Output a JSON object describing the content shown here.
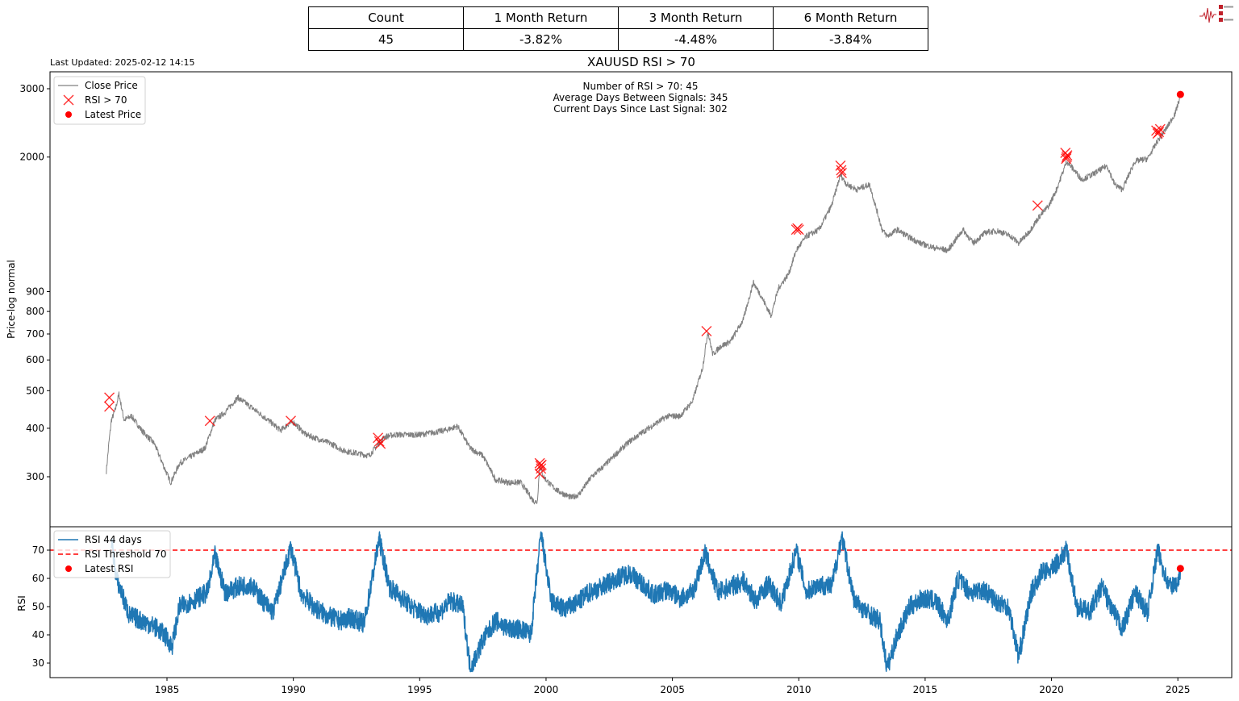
{
  "header": {
    "last_updated": "Last Updated: 2025-02-12 14:15",
    "title": "XAUUSD RSI > 70",
    "logo_alt": "Signal 2 Noise logo"
  },
  "stats_table": {
    "headers": [
      "Count",
      "1 Month Return",
      "3 Month Return",
      "6 Month Return"
    ],
    "values": [
      "45",
      "-3.82%",
      "-4.48%",
      "-3.84%"
    ]
  },
  "colors": {
    "price_line": "#808080",
    "signal_marker": "#ff0000",
    "rsi_line": "#1f77b4",
    "threshold_line": "#ff0000",
    "latest_dot": "#ff0000"
  },
  "chart_data": [
    {
      "type": "line",
      "title": "XAUUSD RSI > 70",
      "xlabel": "",
      "ylabel": "Price-log normal",
      "yscale": "log",
      "ylim": [
        240,
        3300
      ],
      "xlim": [
        1980.5,
        2027.3
      ],
      "y_ticks": [
        300,
        400,
        500,
        600,
        700,
        800,
        900,
        2000,
        3000
      ],
      "y_tick_labels": [
        "300",
        "400",
        "500",
        "600",
        "700",
        "800",
        "900",
        "2000",
        "3000"
      ],
      "x_ticks": [
        1985,
        1990,
        1995,
        2000,
        2005,
        2010,
        2015,
        2020,
        2025
      ],
      "x_tick_labels": [
        "1985",
        "1990",
        "1995",
        "2000",
        "2005",
        "2010",
        "2015",
        "2020",
        "2025"
      ],
      "grid": false,
      "legend": {
        "position": "upper left",
        "entries": [
          "Close Price",
          "RSI > 70",
          "Latest Price"
        ]
      },
      "annotations": [
        "Number of RSI > 70: 45",
        "Average Days Between Signals: 345",
        "Current Days Since Last Signal: 302"
      ],
      "series": [
        {
          "name": "Close Price",
          "x": [
            1982.6,
            1982.7,
            1982.8,
            1982.95,
            1983.1,
            1983.3,
            1983.6,
            1984.0,
            1984.5,
            1985.0,
            1985.15,
            1985.5,
            1986.0,
            1986.5,
            1986.9,
            1987.3,
            1987.8,
            1988.0,
            1988.5,
            1989.0,
            1989.5,
            1989.8,
            1990.0,
            1990.5,
            1991.0,
            1991.5,
            1992.0,
            1992.5,
            1993.0,
            1993.3,
            1993.6,
            1994.0,
            1994.5,
            1995.0,
            1995.5,
            1996.0,
            1996.5,
            1997.0,
            1997.5,
            1998.0,
            1998.5,
            1999.0,
            1999.5,
            1999.65,
            1999.75,
            1999.9,
            2000.2,
            2000.5,
            2001.0,
            2001.3,
            2001.8,
            2002.3,
            2002.8,
            2003.3,
            2003.8,
            2004.3,
            2004.8,
            2005.3,
            2005.8,
            2006.2,
            2006.4,
            2006.6,
            2006.9,
            2007.3,
            2007.8,
            2008.2,
            2008.5,
            2008.9,
            2009.2,
            2009.6,
            2009.9,
            2010.3,
            2010.8,
            2011.3,
            2011.65,
            2011.9,
            2012.3,
            2012.8,
            2013.3,
            2013.5,
            2013.9,
            2014.3,
            2014.8,
            2015.3,
            2015.9,
            2016.5,
            2016.9,
            2017.4,
            2017.9,
            2018.4,
            2018.7,
            2019.1,
            2019.5,
            2019.9,
            2020.2,
            2020.6,
            2020.9,
            2021.2,
            2021.6,
            2022.2,
            2022.5,
            2022.8,
            2023.3,
            2023.8,
            2024.2,
            2024.6,
            2024.9,
            2025.1
          ],
          "values": [
            310,
            365,
            420,
            445,
            490,
            420,
            430,
            395,
            365,
            305,
            290,
            325,
            340,
            355,
            420,
            440,
            480,
            470,
            445,
            420,
            395,
            410,
            415,
            385,
            375,
            365,
            350,
            345,
            340,
            360,
            380,
            385,
            385,
            385,
            390,
            395,
            405,
            355,
            340,
            295,
            290,
            290,
            260,
            258,
            320,
            300,
            285,
            275,
            265,
            270,
            300,
            320,
            345,
            370,
            390,
            410,
            430,
            430,
            470,
            575,
            710,
            620,
            650,
            670,
            760,
            950,
            880,
            780,
            920,
            1000,
            1150,
            1250,
            1300,
            1500,
            1800,
            1700,
            1650,
            1700,
            1300,
            1250,
            1300,
            1250,
            1200,
            1170,
            1150,
            1300,
            1200,
            1280,
            1290,
            1250,
            1200,
            1280,
            1400,
            1500,
            1650,
            1950,
            1850,
            1750,
            1800,
            1900,
            1700,
            1650,
            1950,
            1980,
            2200,
            2400,
            2600,
            2870
          ]
        },
        {
          "name": "RSI > 70",
          "marker": "x",
          "x": [
            1982.72,
            1982.72,
            1986.7,
            1989.9,
            1993.35,
            1993.4,
            1993.45,
            1999.75,
            1999.78,
            1999.8,
            1999.82,
            1999.75,
            2006.35,
            2009.9,
            2009.95,
            2010.0,
            2011.65,
            2011.68,
            2011.7,
            2019.45,
            2020.55,
            2020.6,
            2020.62,
            2020.58,
            2024.15,
            2024.2,
            2024.25,
            2024.3
          ],
          "values": [
            480,
            455,
            418,
            418,
            378,
            370,
            365,
            325,
            320,
            315,
            322,
            305,
            712,
            1300,
            1310,
            1300,
            1900,
            1850,
            1820,
            1500,
            2050,
            2000,
            2020,
            1980,
            2340,
            2300,
            2320,
            2360
          ]
        },
        {
          "name": "Latest Price",
          "marker": "o",
          "x": [
            2025.1
          ],
          "values": [
            2900
          ]
        }
      ]
    },
    {
      "type": "line",
      "title": "",
      "xlabel": "",
      "ylabel": "RSI",
      "ylim": [
        25.5,
        78
      ],
      "xlim": [
        1980.5,
        2027.3
      ],
      "y_ticks": [
        30,
        40,
        50,
        60,
        70
      ],
      "y_tick_labels": [
        "30",
        "40",
        "50",
        "60",
        "70"
      ],
      "x_ticks": [
        1985,
        1990,
        1995,
        2000,
        2005,
        2010,
        2015,
        2020,
        2025
      ],
      "x_tick_labels": [
        "1985",
        "1990",
        "1995",
        "2000",
        "2005",
        "2010",
        "2015",
        "2020",
        "2025"
      ],
      "grid": false,
      "legend": {
        "position": "upper left",
        "entries": [
          "RSI 44 days",
          "RSI Threshold 70",
          "Latest RSI"
        ]
      },
      "series": [
        {
          "name": "RSI 44 days",
          "x": [
            1982.8,
            1983.0,
            1983.2,
            1983.5,
            1984.0,
            1984.5,
            1984.9,
            1985.2,
            1985.5,
            1986.0,
            1986.6,
            1986.9,
            1987.3,
            1987.8,
            1988.3,
            1988.8,
            1989.2,
            1989.9,
            1990.3,
            1990.8,
            1991.3,
            1991.8,
            1992.3,
            1992.8,
            1993.4,
            1993.8,
            1994.3,
            1994.8,
            1995.3,
            1995.8,
            1996.2,
            1996.7,
            1997.0,
            1997.5,
            1998.0,
            1998.5,
            1999.0,
            1999.4,
            1999.8,
            2000.2,
            2000.7,
            2001.2,
            2001.7,
            2002.2,
            2002.8,
            2003.3,
            2003.8,
            2004.3,
            2004.8,
            2005.3,
            2005.8,
            2006.3,
            2006.8,
            2007.3,
            2007.8,
            2008.3,
            2008.8,
            2009.3,
            2009.9,
            2010.3,
            2010.8,
            2011.3,
            2011.7,
            2012.2,
            2012.7,
            2013.2,
            2013.5,
            2013.9,
            2014.4,
            2014.9,
            2015.4,
            2015.9,
            2016.3,
            2016.8,
            2017.3,
            2017.8,
            2018.3,
            2018.7,
            2019.2,
            2019.6,
            2020.0,
            2020.6,
            2021.0,
            2021.5,
            2022.0,
            2022.4,
            2022.8,
            2023.3,
            2023.8,
            2024.2,
            2024.6,
            2024.9,
            2025.1
          ],
          "values": [
            74,
            60,
            55,
            47,
            45,
            43,
            40,
            36,
            50,
            52,
            55,
            68,
            55,
            57,
            58,
            52,
            48,
            71,
            55,
            50,
            47,
            45,
            46,
            44,
            74,
            57,
            53,
            49,
            47,
            48,
            52,
            50,
            28,
            38,
            45,
            42,
            42,
            40,
            76,
            52,
            49,
            51,
            55,
            57,
            60,
            62,
            58,
            54,
            56,
            53,
            55,
            69,
            55,
            57,
            59,
            52,
            58,
            51,
            70,
            55,
            58,
            57,
            75,
            52,
            48,
            45,
            28,
            40,
            50,
            53,
            52,
            45,
            60,
            55,
            56,
            52,
            50,
            32,
            55,
            62,
            63,
            70,
            50,
            48,
            57,
            49,
            42,
            55,
            48,
            70,
            58,
            57,
            63
          ]
        },
        {
          "name": "RSI Threshold 70",
          "style": "dashed",
          "values": [
            70
          ]
        },
        {
          "name": "Latest RSI",
          "marker": "o",
          "x": [
            2025.1
          ],
          "values": [
            63.5
          ]
        }
      ]
    }
  ]
}
